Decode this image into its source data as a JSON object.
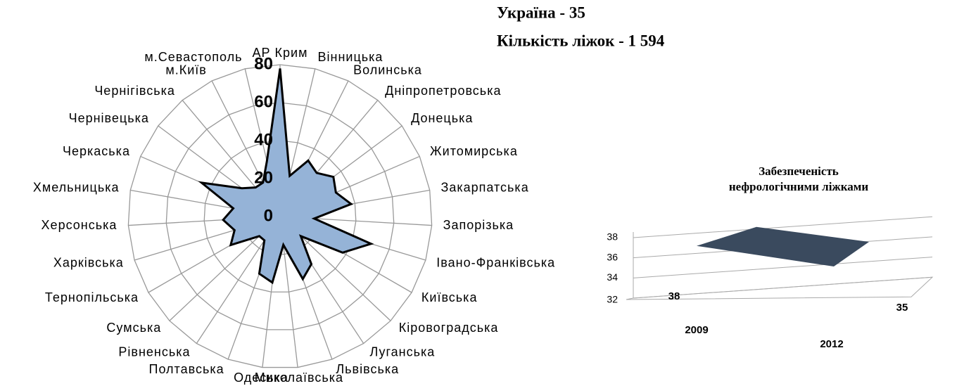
{
  "annotations": [
    "Україна - 35",
    "Кількість ліжок - 1 594"
  ],
  "chart_data": [
    {
      "type": "radar",
      "categories": [
        "АР Крим",
        "Вінницька",
        "Волинська",
        "Дніпропетровська",
        "Донецька",
        "Житомирська",
        "Закарпатська",
        "Запорізька",
        "Івано-Франківська",
        "Київська",
        "Кіровоградська",
        "Луганська",
        "Львівська",
        "Миколаївська",
        "Одеська",
        "Полтавська",
        "Рівненська",
        "Сумська",
        "Тернопільська",
        "Харківська",
        "Херсонська",
        "Хмельницька",
        "Черкаська",
        "Чернівецька",
        "Чернігівська",
        "м.Київ",
        "м.Севастополь"
      ],
      "values": [
        78,
        22,
        33,
        30,
        35,
        32,
        38,
        18,
        50,
        38,
        15,
        30,
        35,
        15,
        35,
        32,
        15,
        15,
        30,
        25,
        30,
        25,
        45,
        25,
        20,
        20,
        30
      ],
      "color": "#95b3d7",
      "ylim": [
        0,
        80
      ],
      "yticks": [
        0,
        20,
        40,
        60,
        80
      ],
      "grid": true
    },
    {
      "type": "line3d",
      "title": "Забезпеченість нефрологічними ліжками",
      "categories": [
        "2009",
        "2012"
      ],
      "values": [
        38,
        35
      ],
      "color": "#3a4a5e",
      "ylim": [
        32,
        38
      ],
      "yticks": [
        32,
        34,
        36,
        38
      ],
      "grid": true
    }
  ]
}
